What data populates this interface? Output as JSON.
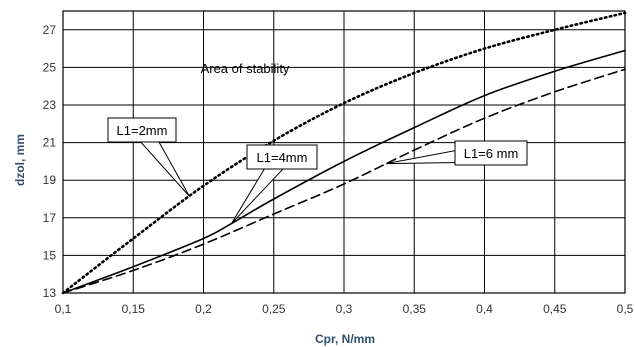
{
  "chart_data": {
    "type": "line",
    "xlabel": "Cpr, N/mm",
    "ylabel": "dzol, mm",
    "xlim": [
      0.1,
      0.5
    ],
    "ylim": [
      13,
      28
    ],
    "x_ticks": [
      0.1,
      0.15,
      0.2,
      0.25,
      0.3,
      0.35,
      0.4,
      0.45,
      0.5
    ],
    "x_tick_labels": [
      "0,1",
      "0,15",
      "0,2",
      "0,25",
      "0,3",
      "0,35",
      "0,4",
      "0,45",
      "0,5"
    ],
    "y_ticks": [
      13,
      15,
      17,
      19,
      21,
      23,
      25,
      27
    ],
    "y_tick_labels": [
      "13",
      "15",
      "17",
      "19",
      "21",
      "23",
      "25",
      "27"
    ],
    "grid": true,
    "annotations": [
      "Area of stability"
    ],
    "series": [
      {
        "name": "L1=2mm",
        "style": "dotted",
        "color": "#000000",
        "x": [
          0.1,
          0.15,
          0.2,
          0.25,
          0.3,
          0.35,
          0.4,
          0.45,
          0.5
        ],
        "y": [
          13.0,
          15.9,
          18.7,
          21.1,
          23.1,
          24.7,
          26.0,
          27.0,
          27.9
        ]
      },
      {
        "name": "L1=4mm",
        "style": "solid",
        "color": "#000000",
        "x": [
          0.1,
          0.15,
          0.2,
          0.22,
          0.25,
          0.3,
          0.35,
          0.4,
          0.45,
          0.5
        ],
        "y": [
          13.0,
          14.4,
          15.9,
          16.7,
          18.0,
          20.0,
          21.8,
          23.5,
          24.8,
          25.9
        ]
      },
      {
        "name": "L1=6 mm",
        "style": "dashed",
        "color": "#000000",
        "x": [
          0.1,
          0.15,
          0.2,
          0.25,
          0.3,
          0.35,
          0.4,
          0.45,
          0.5
        ],
        "y": [
          13.0,
          14.2,
          15.6,
          17.2,
          18.8,
          20.6,
          22.3,
          23.7,
          24.9
        ]
      }
    ],
    "callouts": [
      {
        "label": "L1=2mm",
        "series": 0,
        "point_x": 0.19
      },
      {
        "label": "L1=4mm",
        "series": 1,
        "point_x": 0.22
      },
      {
        "label": "L1=6 mm",
        "series": 2,
        "point_x": 0.33
      }
    ]
  }
}
